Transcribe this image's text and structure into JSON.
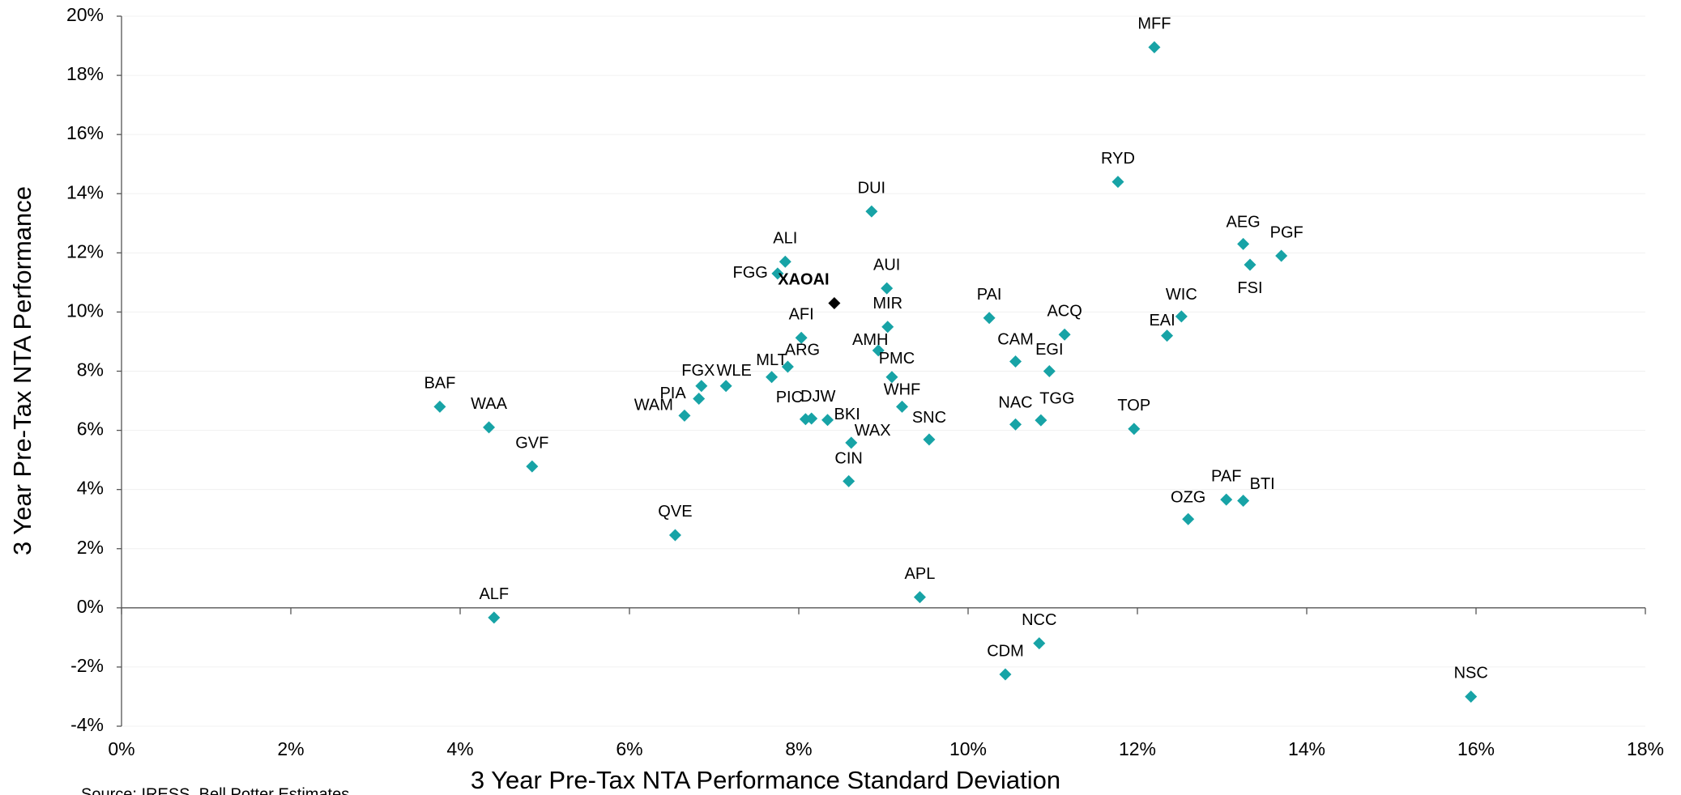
{
  "chart_data": {
    "type": "scatter",
    "xlabel": "3 Year Pre-Tax NTA Performance Standard Deviation",
    "ylabel": "3 Year Pre-Tax NTA Performance",
    "source": "Source: IRESS, Bell Potter Estimates",
    "xlim": [
      0,
      18
    ],
    "ylim": [
      -4,
      20
    ],
    "xticks": [
      {
        "value": 0,
        "label": "0%"
      },
      {
        "value": 2,
        "label": "2%"
      },
      {
        "value": 4,
        "label": "4%"
      },
      {
        "value": 6,
        "label": "6%"
      },
      {
        "value": 8,
        "label": "8%"
      },
      {
        "value": 10,
        "label": "10%"
      },
      {
        "value": 12,
        "label": "12%"
      },
      {
        "value": 14,
        "label": "14%"
      },
      {
        "value": 16,
        "label": "16%"
      },
      {
        "value": 18,
        "label": "18%"
      }
    ],
    "yticks": [
      {
        "value": -4,
        "label": "-4%"
      },
      {
        "value": -2,
        "label": "-2%"
      },
      {
        "value": 0,
        "label": "0%"
      },
      {
        "value": 2,
        "label": "2%"
      },
      {
        "value": 4,
        "label": "4%"
      },
      {
        "value": 6,
        "label": "6%"
      },
      {
        "value": 8,
        "label": "8%"
      },
      {
        "value": 10,
        "label": "10%"
      },
      {
        "value": 12,
        "label": "12%"
      },
      {
        "value": 14,
        "label": "14%"
      },
      {
        "value": 16,
        "label": "16%"
      },
      {
        "value": 18,
        "label": "18%"
      },
      {
        "value": 20,
        "label": "20%"
      }
    ],
    "grid": true,
    "series": [
      {
        "color": "#17a3a6",
        "labels": [
          "MFF",
          "RYD",
          "DUI",
          "AEG",
          "PGF",
          "FSI",
          "ALI",
          "FGG",
          "AUI",
          "WIC",
          "PAI",
          "MIR",
          "ACQ",
          "EAI",
          "AFI",
          "AMH",
          "CAM",
          "ARG",
          "EGI",
          "MLT",
          "PMC",
          "FGX",
          "WLE",
          "PIA",
          "WHF",
          "BAF",
          "WAM",
          "PIC",
          "DJW",
          "BKI",
          "NAC",
          "TGG",
          "WAA",
          "TOP",
          "WAX",
          "SNC",
          "GVF",
          "CIN",
          "PAF",
          "BTI",
          "OZG",
          "QVE",
          "APL",
          "ALF",
          "NCC",
          "CDM",
          "NSC"
        ],
        "x": [
          12.2,
          11.77,
          8.86,
          13.25,
          13.7,
          13.33,
          7.84,
          7.75,
          9.04,
          12.52,
          10.25,
          9.05,
          11.14,
          12.35,
          8.03,
          8.94,
          10.56,
          7.87,
          10.96,
          7.68,
          9.1,
          6.85,
          7.14,
          6.82,
          9.22,
          3.76,
          6.65,
          8.08,
          8.15,
          8.34,
          10.56,
          10.86,
          4.34,
          11.96,
          8.62,
          9.54,
          4.85,
          8.59,
          13.05,
          13.25,
          12.6,
          6.54,
          9.43,
          4.4,
          10.84,
          10.44,
          15.94
        ],
        "y": [
          18.95,
          14.4,
          13.4,
          12.3,
          11.9,
          11.6,
          11.7,
          11.3,
          10.8,
          9.85,
          9.8,
          9.5,
          9.24,
          9.2,
          9.13,
          8.7,
          8.33,
          8.15,
          8.0,
          7.8,
          7.8,
          7.5,
          7.5,
          7.07,
          6.8,
          6.8,
          6.5,
          6.38,
          6.4,
          6.35,
          6.2,
          6.34,
          6.1,
          6.05,
          5.58,
          5.69,
          4.78,
          4.28,
          3.66,
          3.62,
          3.0,
          2.46,
          0.36,
          -0.33,
          -1.2,
          -2.25,
          -3.0
        ]
      },
      {
        "color": "#000000",
        "bold": true,
        "labels": [
          "XAOAI"
        ],
        "x": [
          8.42
        ],
        "y": [
          10.3
        ]
      }
    ]
  }
}
